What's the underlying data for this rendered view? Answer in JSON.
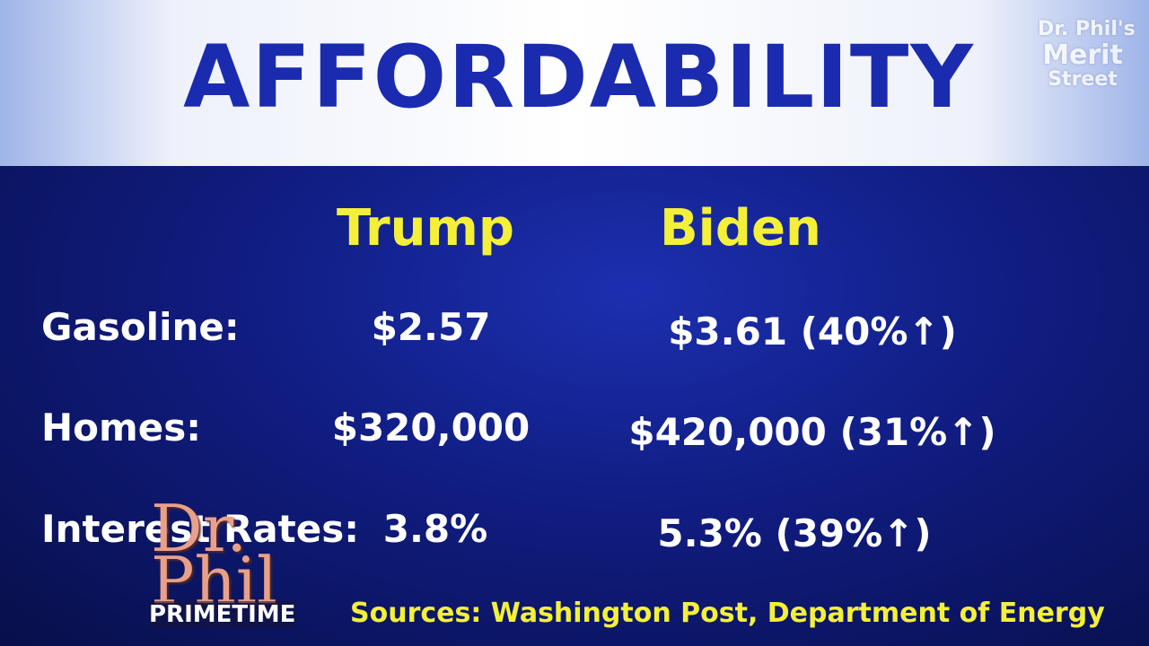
{
  "header": {
    "title": "AFFORDABILITY",
    "logo": [
      "Dr. Phil's",
      "Merit",
      "Street"
    ]
  },
  "table": {
    "columns": [
      "Trump",
      "Biden"
    ],
    "rows": [
      [
        "Gasoline:",
        "$2.57",
        "$3.61 (40%↑)"
      ],
      [
        "Homes:",
        "$320,000",
        "$420,000 (31%↑)"
      ],
      [
        "Interest Rates:",
        "3.8%",
        "5.3% (39%↑)"
      ]
    ]
  },
  "source": "Sources: Washington Post, Department of Energy",
  "show_logo": {
    "name": "Dr. Phil",
    "subtitle": "PRIMETIME"
  }
}
